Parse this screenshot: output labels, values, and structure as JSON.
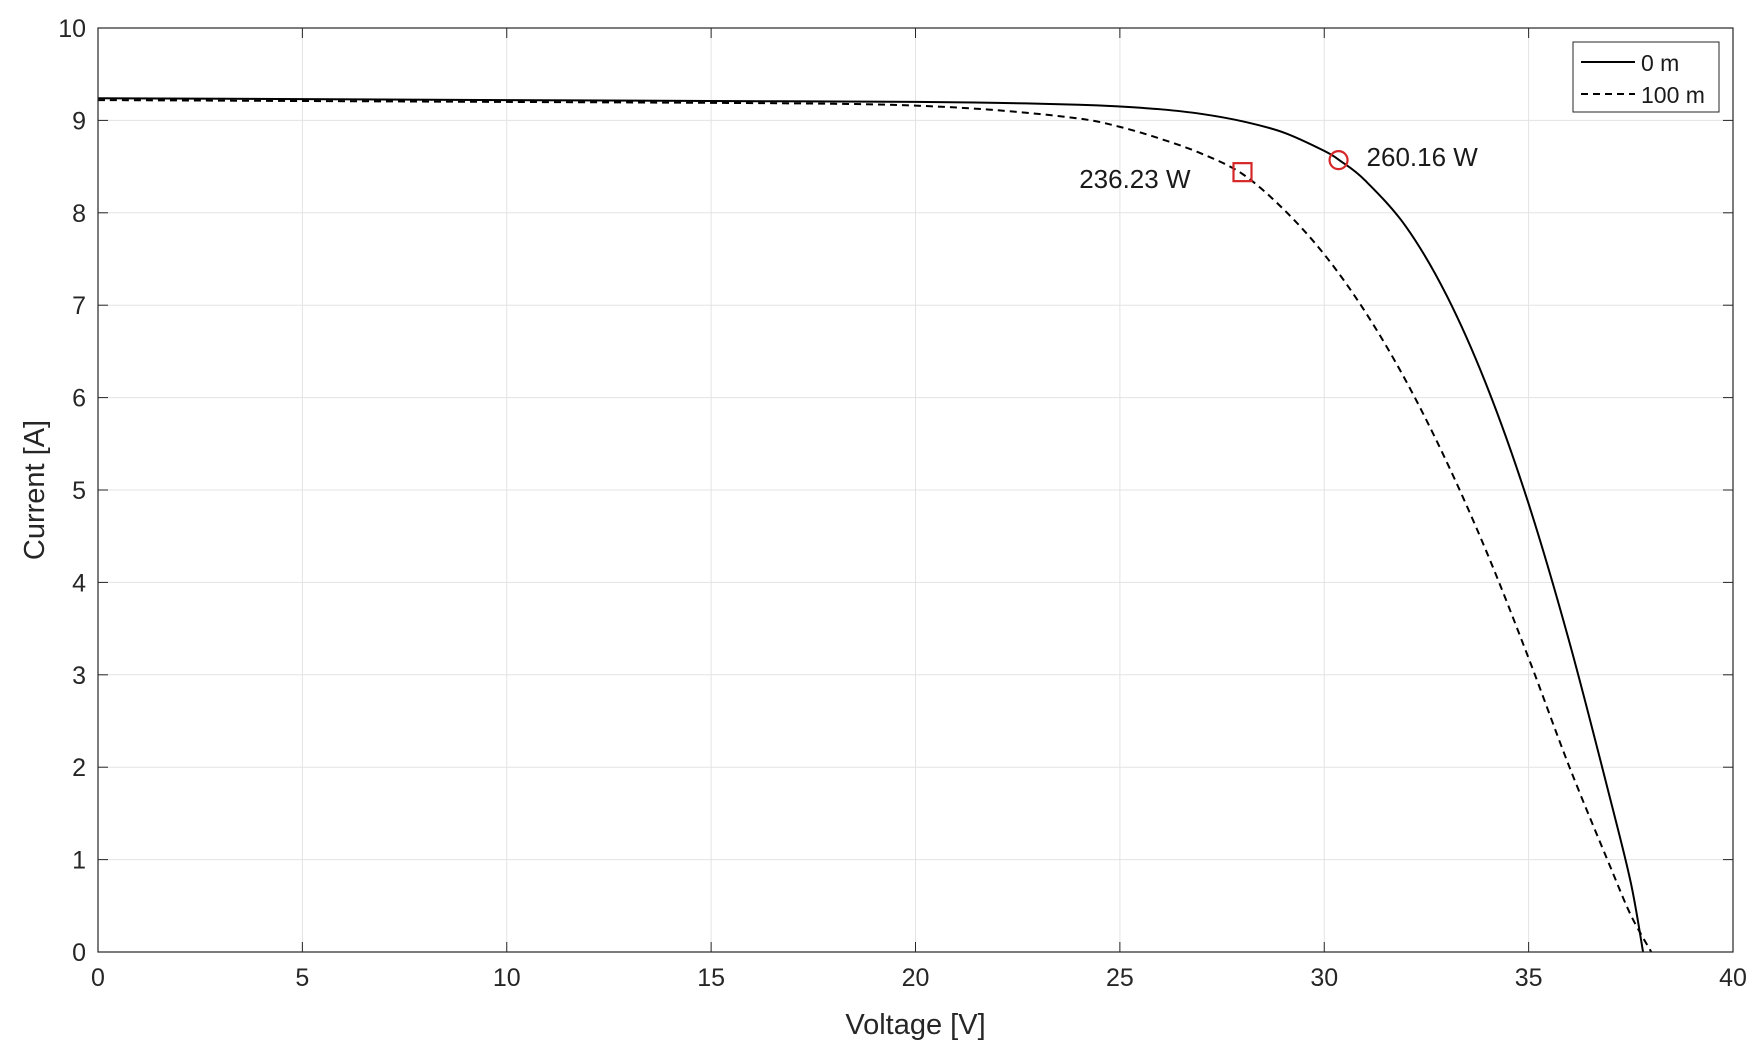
{
  "chart_data": {
    "type": "line",
    "xlabel": "Voltage [V]",
    "ylabel": "Current [A]",
    "xlim": [
      0,
      40
    ],
    "ylim": [
      0,
      10
    ],
    "xticks": [
      0,
      5,
      10,
      15,
      20,
      25,
      30,
      35,
      40
    ],
    "yticks": [
      0,
      1,
      2,
      3,
      4,
      5,
      6,
      7,
      8,
      9,
      10
    ],
    "grid": true,
    "legend_position": "top-right",
    "series": [
      {
        "name": "0 m",
        "line_style": "solid",
        "color": "#000000",
        "x": [
          0,
          5,
          10,
          15,
          20,
          22,
          24,
          25,
          26,
          27,
          28,
          29,
          30,
          30.4,
          31,
          32,
          33,
          34,
          35,
          36,
          37,
          37.5,
          37.8
        ],
        "y": [
          9.24,
          9.23,
          9.22,
          9.21,
          9.2,
          9.19,
          9.17,
          9.15,
          9.12,
          9.07,
          8.99,
          8.87,
          8.67,
          8.56,
          8.35,
          7.85,
          7.1,
          6.1,
          4.85,
          3.35,
          1.65,
          0.75,
          0.0
        ]
      },
      {
        "name": "100 m",
        "line_style": "dashed",
        "color": "#000000",
        "x": [
          0,
          5,
          10,
          15,
          18,
          20,
          22,
          24,
          25,
          26,
          27,
          28,
          29,
          30,
          31,
          32,
          33,
          34,
          35,
          36,
          37,
          37.5,
          38.0
        ],
        "y": [
          9.22,
          9.21,
          9.2,
          9.19,
          9.18,
          9.16,
          9.11,
          9.02,
          8.93,
          8.8,
          8.64,
          8.42,
          8.04,
          7.55,
          6.93,
          6.18,
          5.3,
          4.3,
          3.18,
          2.0,
          0.92,
          0.4,
          0.0
        ]
      }
    ],
    "markers": [
      {
        "shape": "circle",
        "color": "#d62728",
        "x": 30.35,
        "y": 8.57,
        "label": "260.16 W",
        "label_side": "right"
      },
      {
        "shape": "square",
        "color": "#d62728",
        "x": 28.0,
        "y": 8.44,
        "label": "236.23 W",
        "label_side": "left"
      }
    ]
  }
}
